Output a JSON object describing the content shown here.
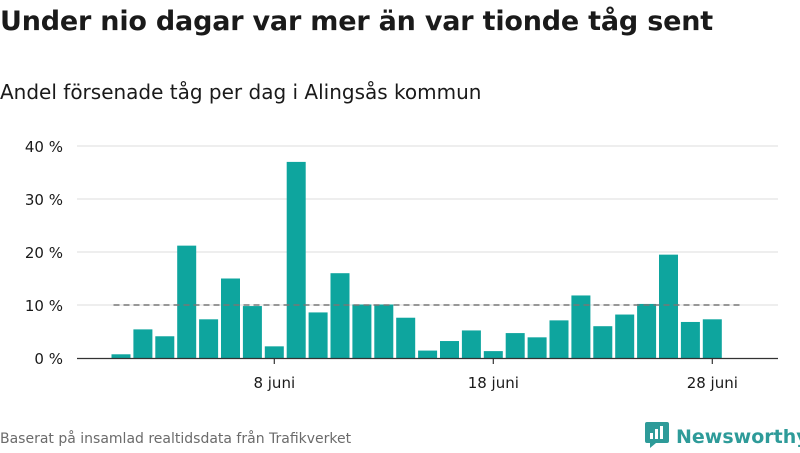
{
  "header": {
    "title": "Under nio dagar var mer än var tionde tåg sent",
    "subtitle": "Andel försenade tåg per dag i Alingsås kommun"
  },
  "footer": {
    "source": "Baserat på insamlad realtidsdata från Trafikverket",
    "logo_text": "Newsworthy"
  },
  "colors": {
    "bar": "#0ea59e",
    "grid": "#dddddd",
    "reference_line": "#777777",
    "logo": "#2e9b99"
  },
  "icons": {
    "logo": "newsworthy-logo-icon"
  },
  "chart_data": {
    "type": "bar",
    "title": "Andel försenade tåg per dag i Alingsås kommun",
    "xlabel": "",
    "ylabel": "",
    "x": [
      "1 juni",
      "2 juni",
      "3 juni",
      "4 juni",
      "5 juni",
      "6 juni",
      "7 juni",
      "8 juni",
      "9 juni",
      "10 juni",
      "11 juni",
      "12 juni",
      "13 juni",
      "14 juni",
      "15 juni",
      "16 juni",
      "17 juni",
      "18 juni",
      "19 juni",
      "20 juni",
      "21 juni",
      "22 juni",
      "23 juni",
      "24 juni",
      "25 juni",
      "26 juni",
      "27 juni",
      "28 juni",
      "29 juni"
    ],
    "values": [
      0.7,
      5.4,
      4.1,
      21.2,
      7.3,
      15.0,
      9.8,
      2.2,
      37.0,
      8.6,
      16.0,
      10.1,
      10.1,
      7.6,
      1.4,
      3.2,
      5.2,
      1.3,
      4.7,
      3.9,
      7.1,
      11.8,
      6.0,
      8.2,
      10.2,
      19.5,
      6.8,
      7.3,
      0
    ],
    "x_tick_labels": [
      {
        "at": "8 juni",
        "label": "8 juni"
      },
      {
        "at": "18 juni",
        "label": "18 juni"
      },
      {
        "at": "28 juni",
        "label": "28 juni"
      }
    ],
    "y_ticks": [
      0,
      10,
      20,
      30,
      40
    ],
    "y_tick_labels": [
      "0 %",
      "10 %",
      "20 %",
      "30 %",
      "40 %"
    ],
    "ylim": [
      0,
      40
    ],
    "reference_line": {
      "value": 10,
      "style": "dashed"
    },
    "grid": true,
    "legend": "none"
  }
}
